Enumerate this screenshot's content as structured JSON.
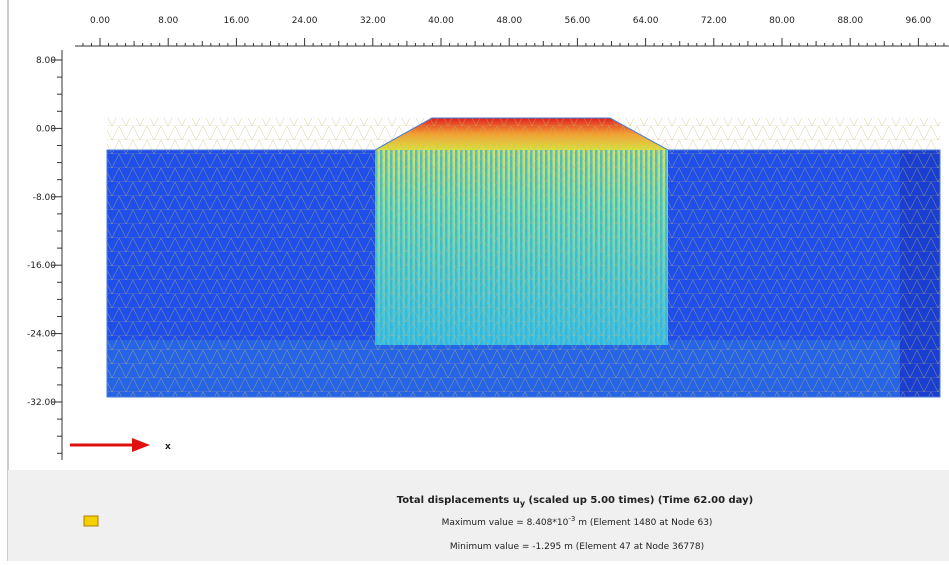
{
  "top_ruler": {
    "ticks": [
      "0.00",
      "8.00",
      "16.00",
      "24.00",
      "32.00",
      "40.00",
      "48.00",
      "56.00",
      "64.00",
      "72.00",
      "80.00",
      "88.00",
      "96.00"
    ]
  },
  "left_ruler": {
    "ticks": [
      "8.00",
      "0.00",
      "-8.00",
      "-16.00",
      "-24.00",
      "-32.00"
    ]
  },
  "axis_label": "x",
  "caption": {
    "title": "Total displacements u",
    "title_sub": "y",
    "title_rest": " (scaled up 5.00 times) (Time 62.00 day)",
    "max_text": "Maximum value = 8.408*10",
    "max_exp": "-3",
    "max_rest": " m (Element 1480 at Node 63)",
    "min_text": "Minimum value = -1.295 m (Element 47 at Node 36778)"
  }
}
